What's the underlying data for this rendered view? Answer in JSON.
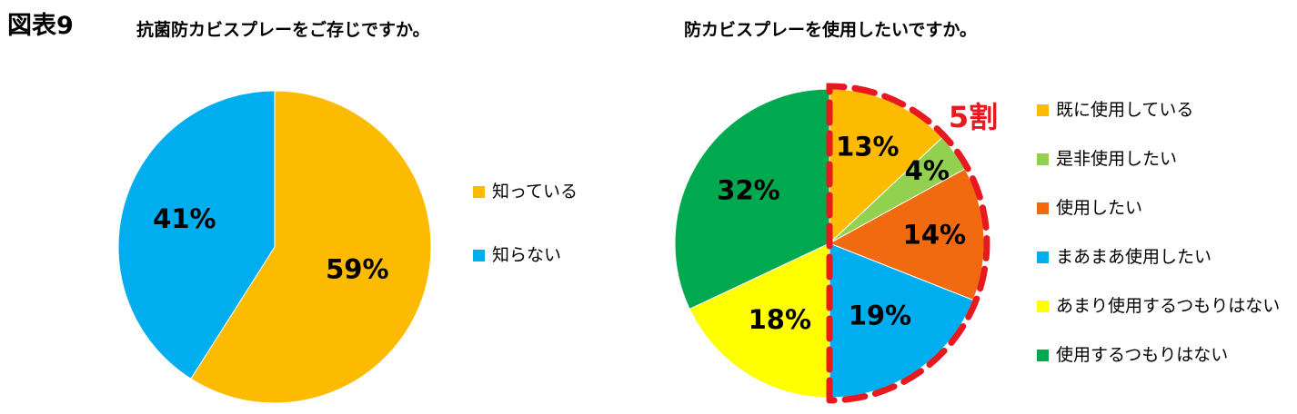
{
  "figure_label": "図表9",
  "colors": {
    "callout": "#e8191e"
  },
  "chart_data": [
    {
      "type": "pie",
      "title": "抗菌防カビスプレーをご存じですか。",
      "slices": [
        {
          "label": "知っている",
          "value": 59,
          "text": "59%",
          "color": "#fdbb00"
        },
        {
          "label": "知らない",
          "value": 41,
          "text": "41%",
          "color": "#00aeef"
        }
      ],
      "legend": "right"
    },
    {
      "type": "pie",
      "title": "防カビスプレーを使用したいですか。",
      "slices": [
        {
          "label": "既に使用している",
          "value": 13,
          "text": "13%",
          "color": "#fdbb00"
        },
        {
          "label": "是非使用したい",
          "value": 4,
          "text": "4%",
          "color": "#92d050"
        },
        {
          "label": "使用したい",
          "value": 14,
          "text": "14%",
          "color": "#f26a0f"
        },
        {
          "label": "まあまあ使用したい",
          "value": 19,
          "text": "19%",
          "color": "#00aeef"
        },
        {
          "label": "あまり使用するつもりはない",
          "value": 18,
          "text": "18%",
          "color": "#ffff00"
        },
        {
          "label": "使用するつもりはない",
          "value": 32,
          "text": "32%",
          "color": "#00a94f"
        }
      ],
      "legend": "right",
      "annotation": "5割"
    }
  ]
}
